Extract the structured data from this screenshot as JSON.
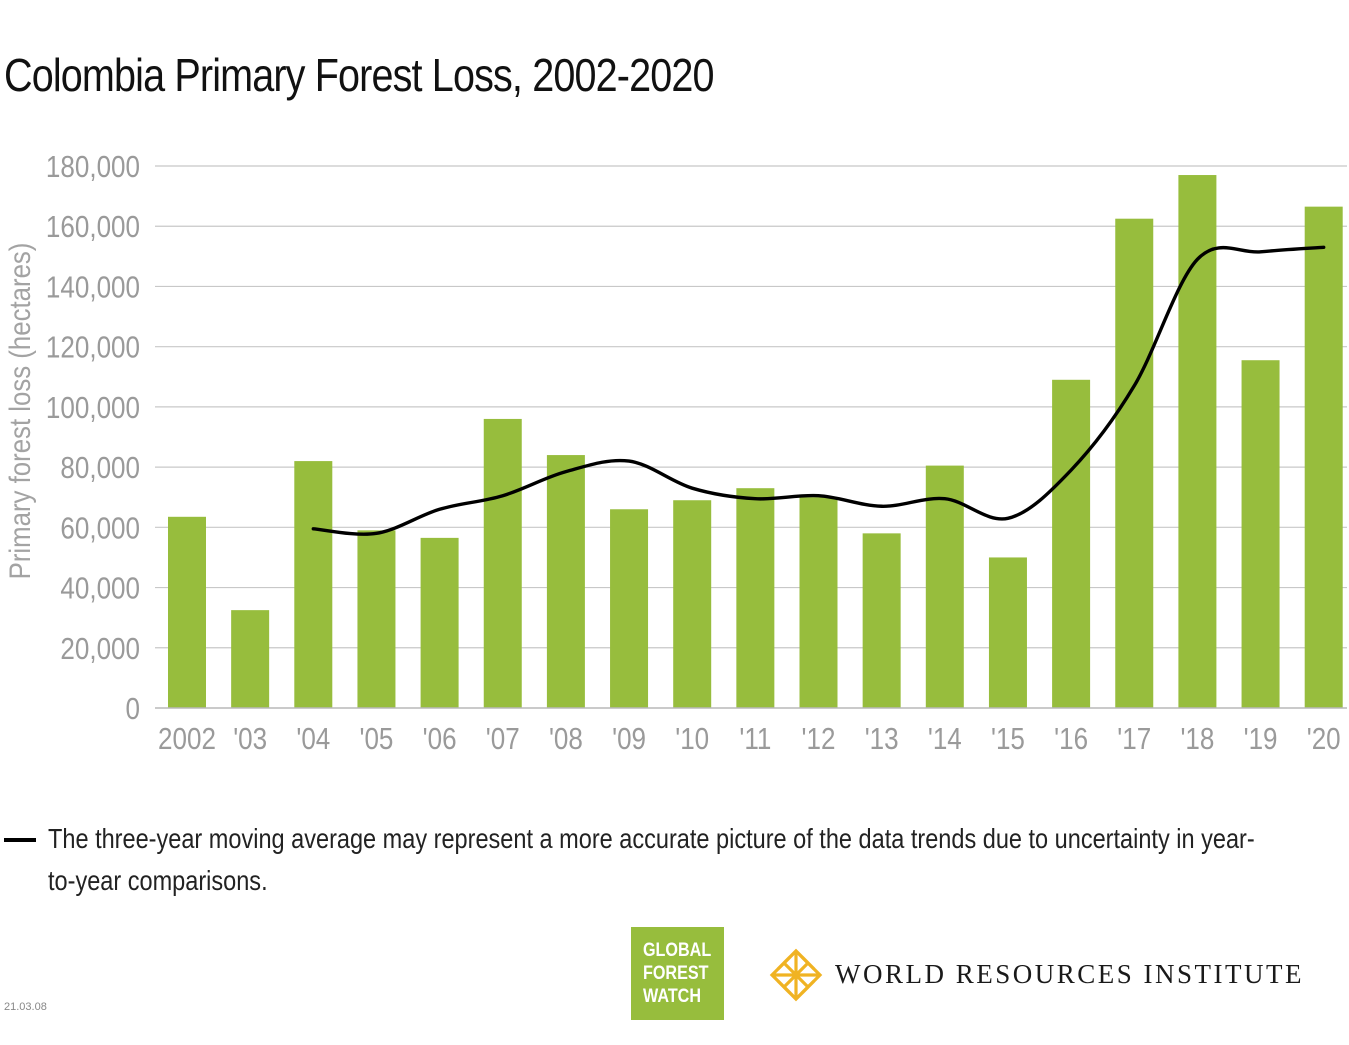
{
  "chart_data": {
    "type": "bar",
    "title": "Colombia Primary Forest Loss, 2002-2020",
    "ylabel": "Primary forest loss (hectares)",
    "xlabel": "",
    "categories": [
      "2002",
      "'03",
      "'04",
      "'05",
      "'06",
      "'07",
      "'08",
      "'09",
      "'10",
      "'11",
      "'12",
      "'13",
      "'14",
      "'15",
      "'16",
      "'17",
      "'18",
      "'19",
      "'20"
    ],
    "yticks": [
      "0",
      "20,000",
      "40,000",
      "60,000",
      "80,000",
      "100,000",
      "120,000",
      "140,000",
      "160,000",
      "180,000"
    ],
    "ytick_values": [
      0,
      20000,
      40000,
      60000,
      80000,
      100000,
      120000,
      140000,
      160000,
      180000
    ],
    "ylim": [
      0,
      180000
    ],
    "grid": true,
    "series": [
      {
        "values": [
          63500,
          32500,
          82000,
          59000,
          56500,
          96000,
          84000,
          66000,
          69000,
          73000,
          70000,
          58000,
          80500,
          50000,
          109000,
          162500,
          177000,
          115500,
          166500
        ],
        "color": "#97bd3d"
      }
    ],
    "moving_average": {
      "values": [
        null,
        null,
        59500,
        58000,
        66000,
        70500,
        78500,
        82000,
        73000,
        69500,
        70500,
        67000,
        69500,
        63000,
        79000,
        107000,
        149000,
        151500,
        153000
      ],
      "color": "#000000"
    },
    "legend": {
      "placement": "bottom",
      "text": "The three-year moving average may represent a more accurate picture of the data trends due to uncertainty in year-to-year comparisons."
    }
  },
  "logos": {
    "gfw": [
      "GLOBAL",
      "FOREST",
      "WATCH"
    ],
    "gfw_color": "#97bd3d",
    "wri": "WORLD RESOURCES INSTITUTE",
    "wri_color": "#f0b323"
  },
  "version": "21.03.08"
}
